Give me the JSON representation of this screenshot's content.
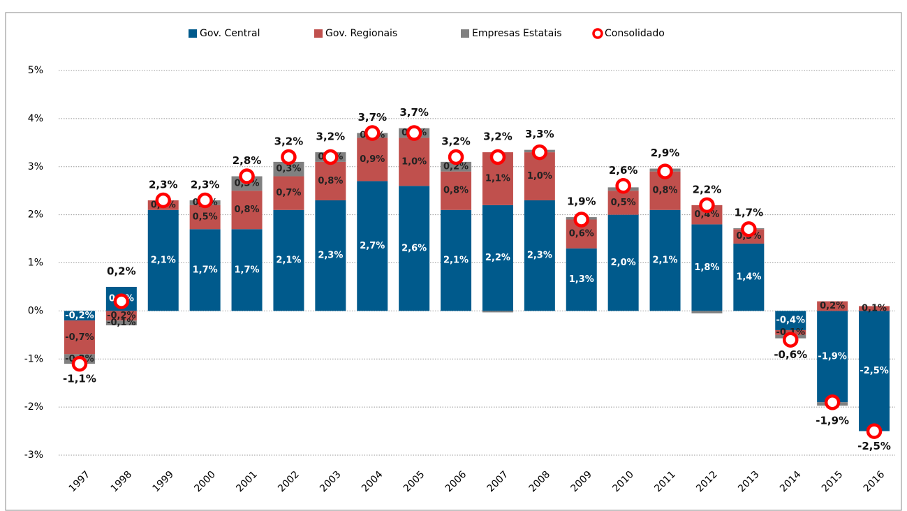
{
  "chart_data": {
    "type": "bar",
    "stacked": true,
    "categories": [
      "1997",
      "1998",
      "1999",
      "2000",
      "2001",
      "2002",
      "2003",
      "2004",
      "2005",
      "2006",
      "2007",
      "2008",
      "2009",
      "2010",
      "2011",
      "2012",
      "2013",
      "2014",
      "2015",
      "2016"
    ],
    "series": [
      {
        "name": "Gov. Central",
        "color": "#005a8c",
        "values": [
          -0.2,
          0.5,
          2.1,
          1.7,
          1.7,
          2.1,
          2.3,
          2.7,
          2.6,
          2.1,
          2.2,
          2.3,
          1.3,
          2.0,
          2.1,
          1.8,
          1.4,
          -0.4,
          -1.9,
          -2.5
        ],
        "value_labels": [
          "-0,2%",
          "0,5%",
          "2,1%",
          "1,7%",
          "1,7%",
          "2,1%",
          "2,3%",
          "2,7%",
          "2,6%",
          "2,1%",
          "2,2%",
          "2,3%",
          "1,3%",
          "2,0%",
          "2,1%",
          "1,8%",
          "1,4%",
          "-0,4%",
          "-1,9%",
          "-2,5%"
        ]
      },
      {
        "name": "Gov. Regionais",
        "color": "#c0504d",
        "values": [
          -0.7,
          -0.2,
          0.2,
          0.5,
          0.8,
          0.7,
          0.8,
          0.9,
          1.0,
          0.8,
          1.1,
          1.0,
          0.6,
          0.5,
          0.8,
          0.4,
          0.3,
          -0.1,
          0.2,
          0.1
        ],
        "value_labels": [
          "-0,7%",
          "-0,2%",
          "0,2%",
          "0,5%",
          "0,8%",
          "0,7%",
          "0,8%",
          "0,9%",
          "1,0%",
          "0,8%",
          "1,1%",
          "1,0%",
          "0,6%",
          "0,5%",
          "0,8%",
          "0,4%",
          "0,3%",
          "-0,1%",
          "0,2%",
          "0,1%"
        ]
      },
      {
        "name": "Empresas Estatais",
        "color": "#808080",
        "values": [
          -0.2,
          -0.1,
          0,
          0.1,
          0.3,
          0.3,
          0.2,
          0.1,
          0.2,
          0.2,
          -0.03,
          0.05,
          0.05,
          0.07,
          0.06,
          -0.05,
          0.02,
          -0.07,
          -0.07,
          0
        ],
        "value_labels": [
          "-0,2%",
          "-0,1%",
          null,
          "0,1%",
          "0,3%",
          "0,3%",
          "0,2%",
          "0,1%",
          "0,2%",
          "0,2%",
          null,
          null,
          null,
          null,
          null,
          null,
          null,
          null,
          null,
          null
        ]
      },
      {
        "name": "Consolidado",
        "color": "#ff0000",
        "type": "scatter",
        "values": [
          -1.1,
          0.2,
          2.3,
          2.3,
          2.8,
          3.2,
          3.2,
          3.7,
          3.7,
          3.2,
          3.2,
          3.3,
          1.9,
          2.6,
          2.9,
          2.2,
          1.7,
          -0.6,
          -1.9,
          -2.5
        ],
        "value_labels": [
          "-1,1%",
          "0,2%",
          "2,3%",
          "2,3%",
          "2,8%",
          "3,2%",
          "3,2%",
          "3,7%",
          "3,7%",
          "3,2%",
          "3,2%",
          "3,3%",
          "1,9%",
          "2,6%",
          "2,9%",
          "2,2%",
          "1,7%",
          "-0,6%",
          "-1,9%",
          "-2,5%"
        ]
      }
    ],
    "ylim": [
      -3,
      5
    ],
    "yticks": [
      {
        "value": -3,
        "label": "-3%"
      },
      {
        "value": -2,
        "label": "-2%"
      },
      {
        "value": -1,
        "label": "-1%"
      },
      {
        "value": 0,
        "label": "0%"
      },
      {
        "value": 1,
        "label": "1%"
      },
      {
        "value": 2,
        "label": "2%"
      },
      {
        "value": 3,
        "label": "3%"
      },
      {
        "value": 4,
        "label": "4%"
      },
      {
        "value": 5,
        "label": "5%"
      }
    ],
    "grid": true,
    "legend": "top"
  }
}
